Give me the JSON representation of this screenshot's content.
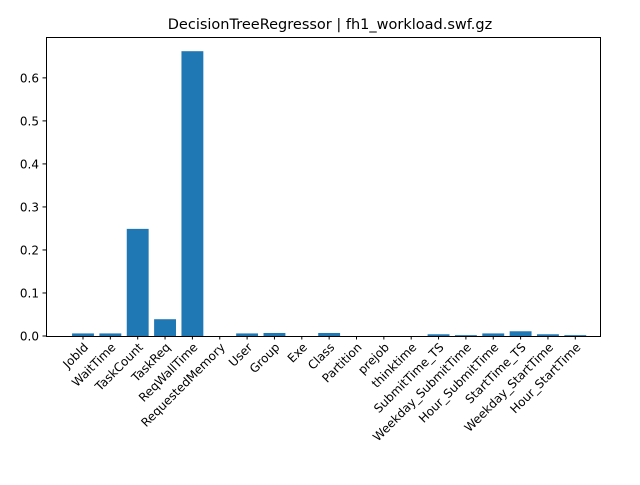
{
  "chart_data": {
    "type": "bar",
    "title": "DecisionTreeRegressor | fh1_workload.swf.gz",
    "xlabel": "",
    "ylabel": "",
    "categories": [
      "JobId",
      "WaitTime",
      "TaskCount",
      "TaskReq",
      "ReqWallTime",
      "RequestedMemory",
      "User",
      "Group",
      "Exe",
      "Class",
      "Partition",
      "prejob",
      "thinktime",
      "SubmitTime_TS",
      "Weekday_SubmitTime",
      "Hour_SubmitTime",
      "StartTime_TS",
      "Weekday_StartTime",
      "Hour_StartTime"
    ],
    "values": [
      0.006,
      0.006,
      0.249,
      0.039,
      0.662,
      0.0,
      0.006,
      0.007,
      0.0,
      0.007,
      0.0,
      0.0,
      0.0,
      0.004,
      0.002,
      0.006,
      0.011,
      0.004,
      0.002
    ],
    "ylim": [
      0,
      0.695
    ],
    "yticks": [
      0.0,
      0.1,
      0.2,
      0.3,
      0.4,
      0.5,
      0.6
    ],
    "ytick_labels": [
      "0.0",
      "0.1",
      "0.2",
      "0.3",
      "0.4",
      "0.5",
      "0.6"
    ],
    "bar_color": "#1f77b4",
    "grid": false,
    "legend": "none"
  }
}
